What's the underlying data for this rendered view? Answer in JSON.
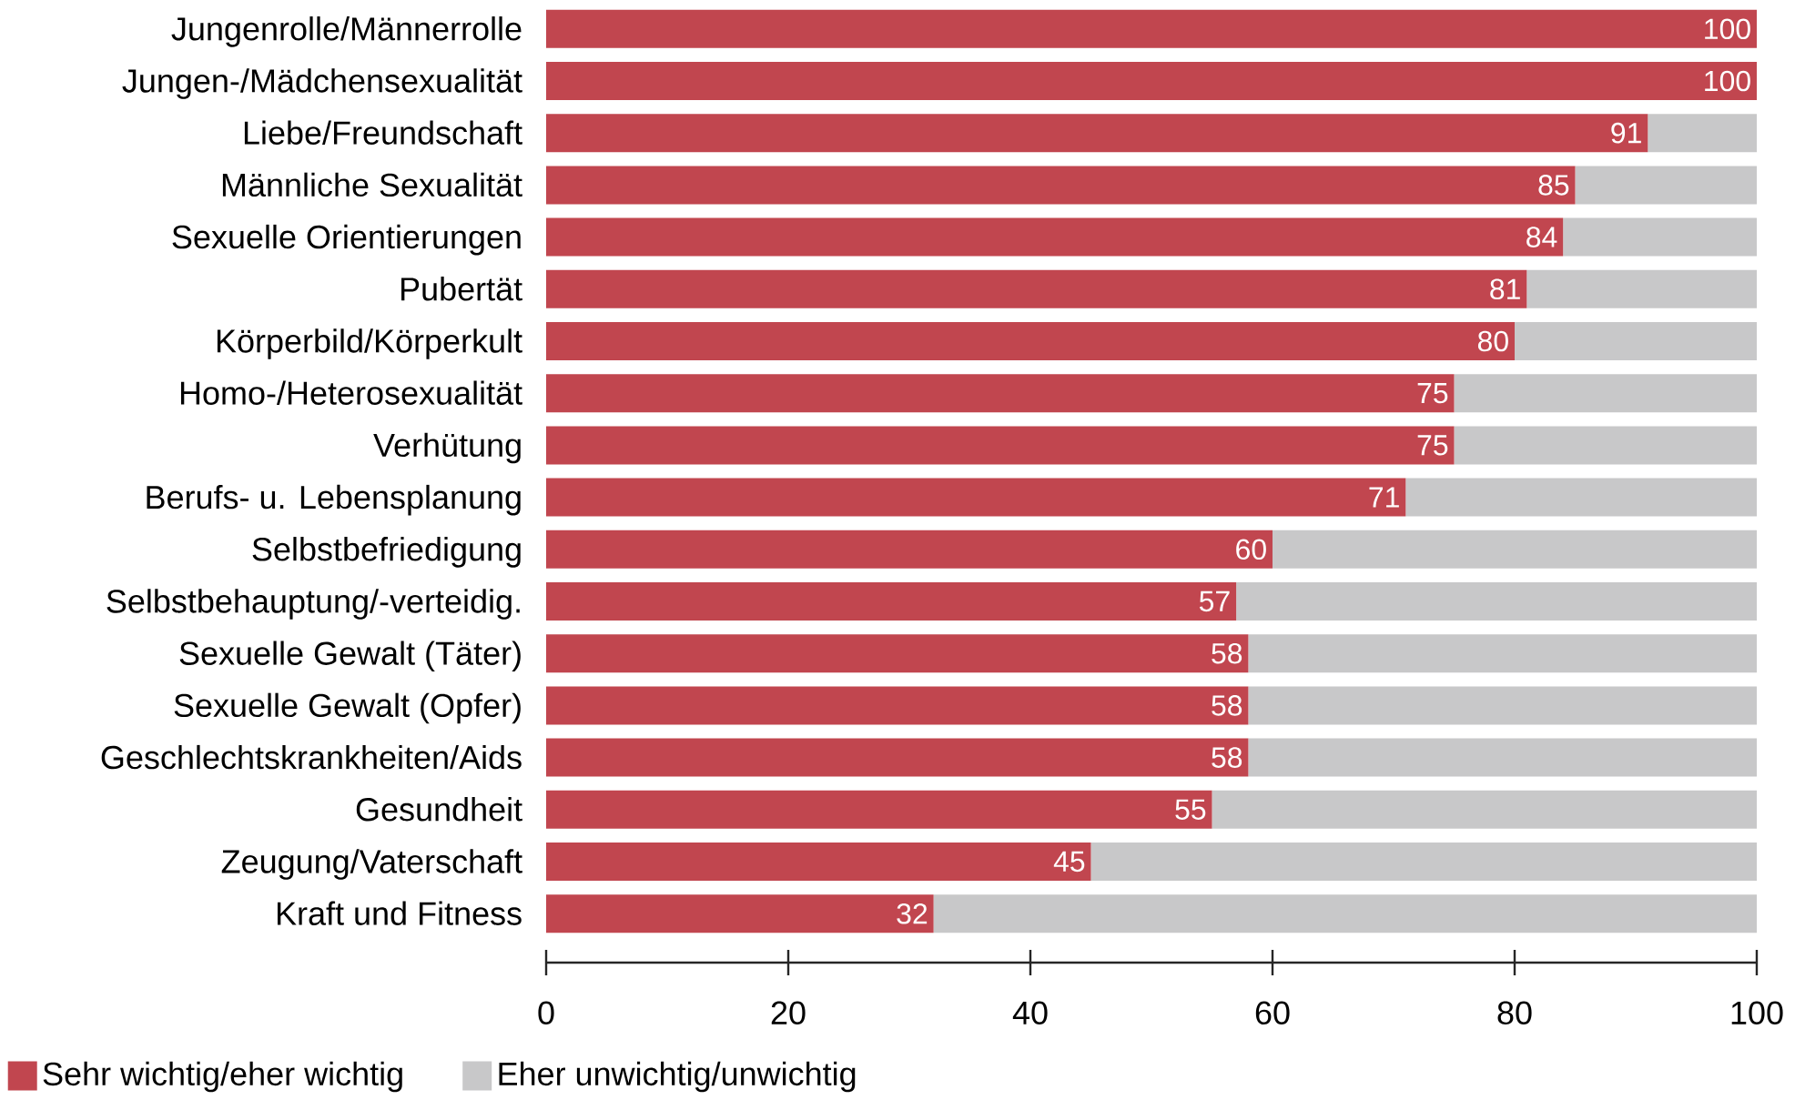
{
  "chart_data": {
    "type": "bar",
    "orientation": "horizontal",
    "stacked": true,
    "categories": [
      "Jungenrolle/Männerrolle",
      "Jungen-/Mädchensexualität",
      "Liebe/Freundschaft",
      "Männliche Sexualität",
      "Sexuelle Orientierungen",
      "Pubertät",
      "Körperbild/Körperkult",
      "Homo-/Heterosexualität",
      "Verhütung",
      "Berufs- u. Lebensplanung",
      "Selbstbefriedigung",
      "Selbstbehauptung/-verteidig.",
      "Sexuelle Gewalt (Täter)",
      "Sexuelle Gewalt (Opfer)",
      "Geschlechtskrankheiten/Aids",
      "Gesundheit",
      "Zeugung/Vaterschaft",
      "Kraft und Fitness"
    ],
    "series": [
      {
        "name": "Sehr wichtig/eher wichtig",
        "color": "#c1464f",
        "values": [
          100,
          100,
          91,
          85,
          84,
          81,
          80,
          75,
          75,
          71,
          60,
          57,
          58,
          58,
          58,
          55,
          45,
          32
        ],
        "value_labels": [
          "100",
          "100",
          "91",
          "85",
          "84",
          "81",
          "80",
          "75",
          "75",
          "71",
          "60",
          "57",
          "58",
          "58",
          "58",
          "55",
          "45",
          "32"
        ]
      },
      {
        "name": "Eher unwichtig/unwichtig",
        "color": "#c8c8c9",
        "values": [
          0,
          0,
          9,
          15,
          16,
          19,
          20,
          25,
          25,
          29,
          40,
          43,
          42,
          42,
          42,
          45,
          55,
          68
        ]
      }
    ],
    "xlim": [
      0,
      100
    ],
    "xticks": [
      0,
      20,
      40,
      60,
      80,
      100
    ],
    "legend": "bottom left"
  }
}
